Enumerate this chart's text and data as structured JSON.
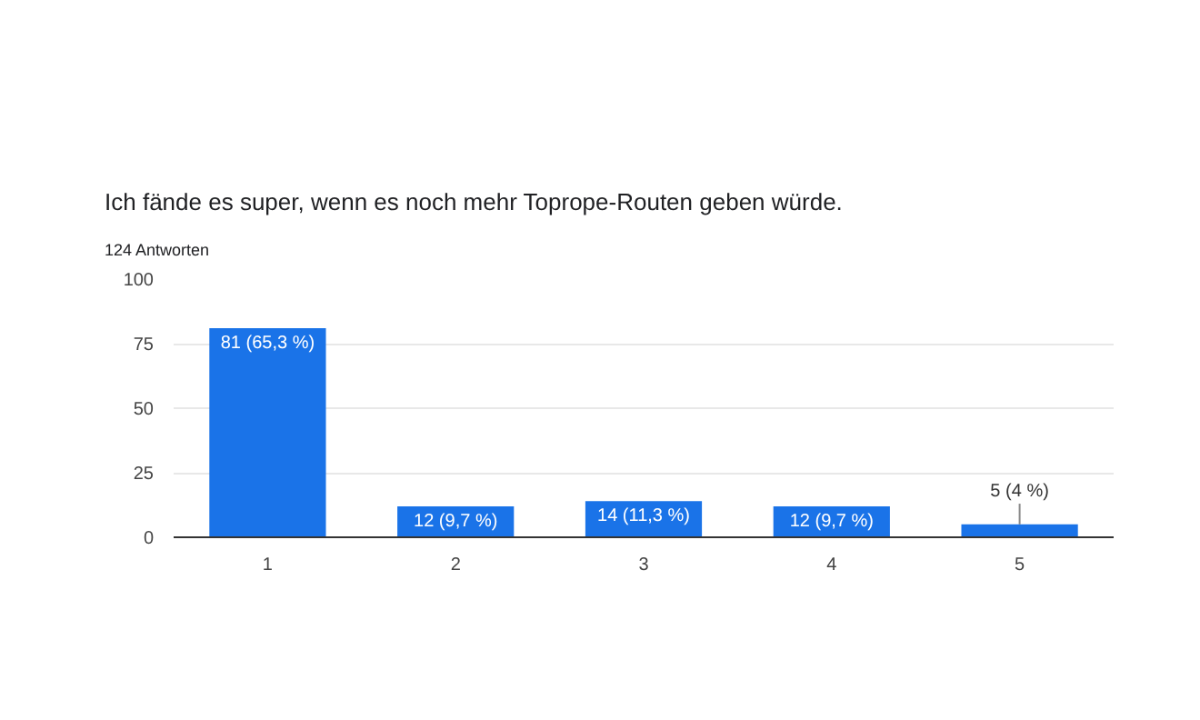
{
  "chart_data": {
    "type": "bar",
    "title": "Ich fände es super, wenn es noch mehr Toprope-Routen geben würde.",
    "subtitle": "124 Antworten",
    "categories": [
      "1",
      "2",
      "3",
      "4",
      "5"
    ],
    "values": [
      81,
      12,
      14,
      12,
      5
    ],
    "color": "#1a73e8",
    "value_labels": [
      "81 (65,3 %)",
      "12 (9,7 %)",
      "14 (11,3 %)",
      "12 (9,7 %)",
      "5 (4 %)"
    ],
    "ylim": [
      0,
      100
    ],
    "yticks": [
      0,
      25,
      50,
      75,
      100
    ],
    "grid": "y"
  }
}
